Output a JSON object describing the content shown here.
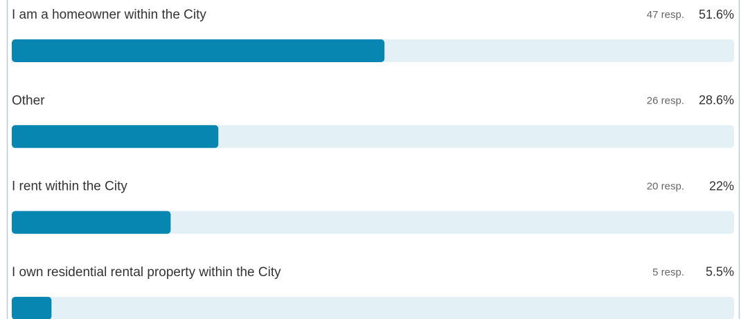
{
  "chart_data": {
    "type": "bar",
    "orientation": "horizontal",
    "categories": [
      "I am a homeowner within the City",
      "Other",
      "I rent within the City",
      "I own residential rental property within the City"
    ],
    "response_labels": [
      "47 resp.",
      "26 resp.",
      "20 resp.",
      "5 resp."
    ],
    "values": [
      51.6,
      28.6,
      22,
      5.5
    ],
    "value_labels": [
      "51.6%",
      "28.6%",
      "22%",
      "5.5%"
    ],
    "color": "#0686b0",
    "track_color": "#e3f1f7",
    "xlim": [
      0,
      100
    ]
  }
}
